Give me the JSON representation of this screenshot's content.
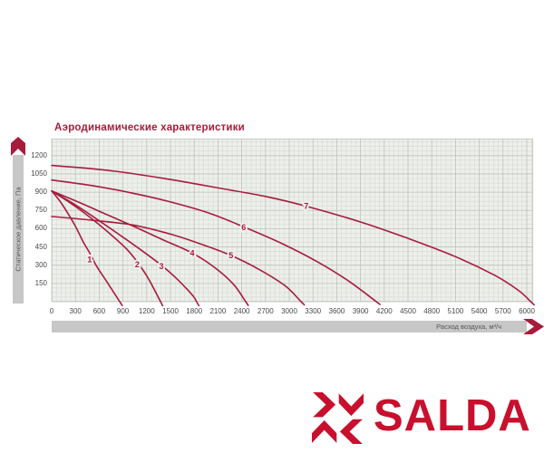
{
  "title": "Аэродинамические характеристики",
  "logo": {
    "text": "SALDA"
  },
  "colors": {
    "accent": "#a71c3c",
    "logo_red": "#c8102e",
    "bar_gray": "#c7c7c7",
    "plot_bg": "#edefeb",
    "grid_minor": "#d5d9d3",
    "grid_major": "#bec2bc",
    "axis_text": "#4a4a4a",
    "bar_text": "#555555"
  },
  "chart_data": {
    "type": "line",
    "title": "Аэродинамические характеристики",
    "xlabel": "Расход воздуха, м³/ч",
    "ylabel": "Статическое давление, Па",
    "xlim": [
      0,
      6080
    ],
    "ylim": [
      0,
      1340
    ],
    "x_ticks": [
      0,
      300,
      600,
      900,
      1200,
      1500,
      1800,
      2100,
      2400,
      2700,
      3000,
      3300,
      3600,
      3900,
      4200,
      4500,
      4800,
      5100,
      5400,
      5700,
      6000
    ],
    "y_ticks": [
      150,
      300,
      450,
      600,
      750,
      900,
      1050,
      1200
    ],
    "grid": "fine minor mesh with darker lines at every labeled tick",
    "legend": "curve numbers 1-7 printed directly on curves",
    "series": [
      {
        "name": "1",
        "label_pos": [
          480,
          345
        ],
        "points": [
          [
            0,
            910
          ],
          [
            100,
            830
          ],
          [
            200,
            730
          ],
          [
            300,
            620
          ],
          [
            400,
            490
          ],
          [
            480,
            400
          ],
          [
            560,
            300
          ],
          [
            660,
            200
          ],
          [
            760,
            100
          ],
          [
            860,
            0
          ]
        ]
      },
      {
        "name": "2",
        "label_pos": [
          1080,
          305
        ],
        "points": [
          [
            0,
            910
          ],
          [
            250,
            805
          ],
          [
            500,
            685
          ],
          [
            750,
            550
          ],
          [
            950,
            430
          ],
          [
            1100,
            310
          ],
          [
            1230,
            180
          ],
          [
            1375,
            0
          ]
        ]
      },
      {
        "name": "3",
        "label_pos": [
          1385,
          290
        ],
        "points": [
          [
            0,
            910
          ],
          [
            300,
            795
          ],
          [
            600,
            665
          ],
          [
            900,
            530
          ],
          [
            1150,
            415
          ],
          [
            1385,
            300
          ],
          [
            1570,
            195
          ],
          [
            1720,
            95
          ],
          [
            1800,
            35
          ],
          [
            1830,
            0
          ]
        ]
      },
      {
        "name": "4",
        "label_pos": [
          1775,
          400
        ],
        "points": [
          [
            0,
            910
          ],
          [
            350,
            815
          ],
          [
            700,
            715
          ],
          [
            1050,
            615
          ],
          [
            1400,
            510
          ],
          [
            1775,
            400
          ],
          [
            2060,
            280
          ],
          [
            2300,
            140
          ],
          [
            2450,
            0
          ]
        ]
      },
      {
        "name": "5",
        "label_pos": [
          2265,
          380
        ],
        "points": [
          [
            0,
            700
          ],
          [
            500,
            670
          ],
          [
            1030,
            630
          ],
          [
            1500,
            555
          ],
          [
            1900,
            470
          ],
          [
            2265,
            380
          ],
          [
            2620,
            265
          ],
          [
            2950,
            130
          ],
          [
            3150,
            0
          ]
        ]
      },
      {
        "name": "6",
        "label_pos": [
          2425,
          610
        ],
        "points": [
          [
            0,
            1000
          ],
          [
            500,
            955
          ],
          [
            1000,
            895
          ],
          [
            1500,
            820
          ],
          [
            2000,
            725
          ],
          [
            2425,
            615
          ],
          [
            2900,
            480
          ],
          [
            3350,
            330
          ],
          [
            3750,
            170
          ],
          [
            4100,
            0
          ]
        ]
      },
      {
        "name": "7",
        "label_pos": [
          3215,
          785
        ],
        "points": [
          [
            0,
            1120
          ],
          [
            700,
            1080
          ],
          [
            1400,
            1015
          ],
          [
            2100,
            935
          ],
          [
            2700,
            865
          ],
          [
            3215,
            785
          ],
          [
            3900,
            655
          ],
          [
            4500,
            520
          ],
          [
            5100,
            370
          ],
          [
            5600,
            215
          ],
          [
            5900,
            90
          ],
          [
            6050,
            0
          ]
        ]
      }
    ]
  }
}
